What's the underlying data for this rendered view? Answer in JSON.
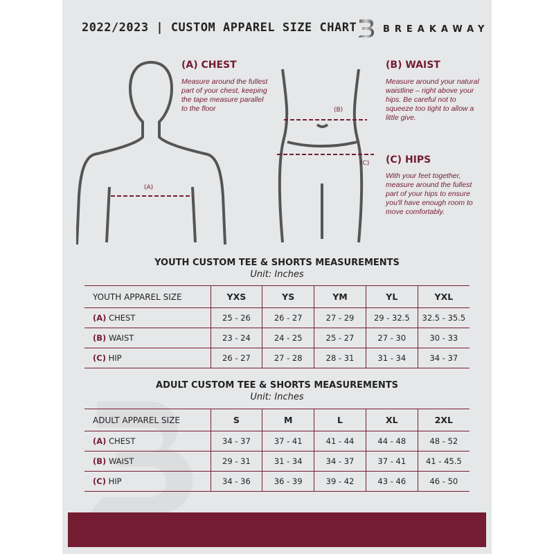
{
  "header": {
    "title": "2022/2023 | CUSTOM APPAREL SIZE CHART",
    "brand": "BREAKAWAY",
    "brand_logo_letter": "B"
  },
  "colors": {
    "accent": "#731c32",
    "background": "#e6e7e8"
  },
  "guides": {
    "chest": {
      "heading": "(A) CHEST",
      "text": "Measure around the fullest part of your chest, keeping the tape measure parallel to the floor",
      "marker": "(A)"
    },
    "waist": {
      "heading": "(B) WAIST",
      "text": "Measure around your natural waistline – right above your hips. Be careful not to squeeze too tight to allow a little give.",
      "marker": "(B)"
    },
    "hips": {
      "heading": "(C) HIPS",
      "text": "With your feet together, measure around the fullest part of your hips to ensure you'll have enough room to move comfortably.",
      "marker": "(C)"
    }
  },
  "youth": {
    "title": "YOUTH CUSTOM TEE & SHORTS MEASUREMENTS",
    "unit": "Unit: Inches",
    "size_label": "YOUTH APPAREL SIZE",
    "sizes": [
      "YXS",
      "YS",
      "YM",
      "YL",
      "YXL"
    ],
    "rows": [
      {
        "code": "(A)",
        "name": "CHEST",
        "values": [
          "25 - 26",
          "26 - 27",
          "27 - 29",
          "29 - 32.5",
          "32.5 - 35.5"
        ]
      },
      {
        "code": "(B)",
        "name": "WAIST",
        "values": [
          "23 - 24",
          "24 - 25",
          "25 - 27",
          "27 - 30",
          "30 - 33"
        ]
      },
      {
        "code": "(C)",
        "name": "HIP",
        "values": [
          "26 - 27",
          "27 - 28",
          "28 - 31",
          "31 - 34",
          "34 - 37"
        ]
      }
    ]
  },
  "adult": {
    "title": "ADULT CUSTOM TEE & SHORTS MEASUREMENTS",
    "unit": "Unit: Inches",
    "size_label": "ADULT APPAREL SIZE",
    "sizes": [
      "S",
      "M",
      "L",
      "XL",
      "2XL"
    ],
    "rows": [
      {
        "code": "(A)",
        "name": "CHEST",
        "values": [
          "34 - 37",
          "37 - 41",
          "41 - 44",
          "44 - 48",
          "48 - 52"
        ]
      },
      {
        "code": "(B)",
        "name": "WAIST",
        "values": [
          "29 - 31",
          "31 - 34",
          "34 - 37",
          "37 - 41",
          "41 - 45.5"
        ]
      },
      {
        "code": "(C)",
        "name": "HIP",
        "values": [
          "34 - 36",
          "36 - 39",
          "39 - 42",
          "43 - 46",
          "46 - 50"
        ]
      }
    ]
  }
}
